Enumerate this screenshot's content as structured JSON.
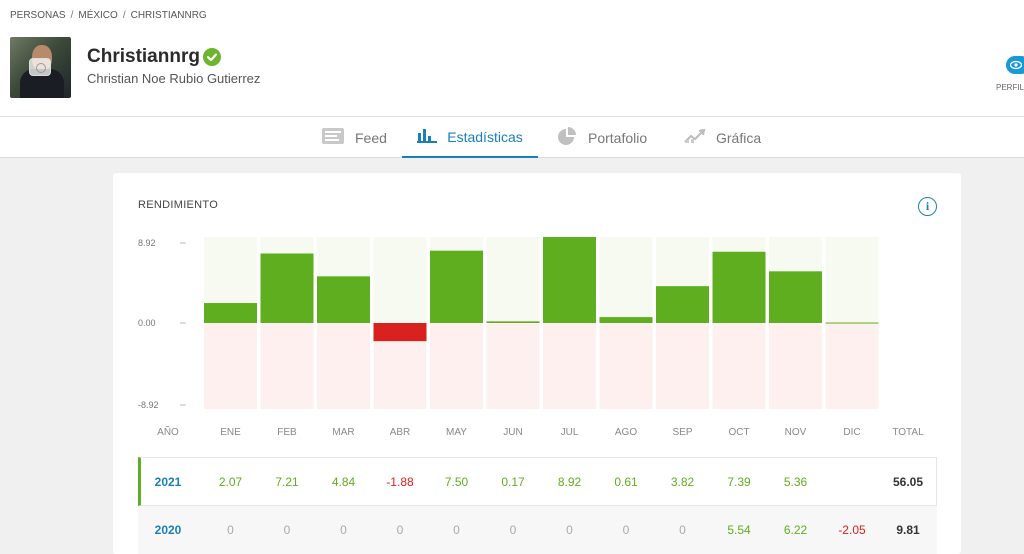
{
  "breadcrumb": [
    "PERSONAS",
    "MÉXICO",
    "CHRISTIANNRG"
  ],
  "profile": {
    "username": "Christiannrg",
    "full_name": "Christian Noe Rubio Gutierrez",
    "profile_label": "PERFIL"
  },
  "tabs": [
    {
      "label": "Feed",
      "icon": "feed-icon",
      "active": false
    },
    {
      "label": "Estadísticas",
      "icon": "bar-chart-icon",
      "active": true
    },
    {
      "label": "Portafolio",
      "icon": "pie-chart-icon",
      "active": false
    },
    {
      "label": "Gráfica",
      "icon": "line-chart-icon",
      "active": false
    }
  ],
  "card": {
    "title": "RENDIMIENTO",
    "info": "i"
  },
  "colors": {
    "positive": "#5fae1f",
    "negative": "#d9211f",
    "accent": "#1a7fb5"
  },
  "chart_data": {
    "type": "bar",
    "categories": [
      "ENE",
      "FEB",
      "MAR",
      "ABR",
      "MAY",
      "JUN",
      "JUL",
      "AGO",
      "SEP",
      "OCT",
      "NOV",
      "DIC"
    ],
    "values": [
      2.07,
      7.21,
      4.84,
      -1.88,
      7.5,
      0.17,
      8.92,
      0.61,
      3.82,
      7.39,
      5.36,
      0.05
    ],
    "ylim": [
      -8.92,
      8.92
    ],
    "yticks": [
      "8.92",
      "0.00",
      "-8.92"
    ]
  },
  "table": {
    "headers": {
      "year": "AÑO",
      "total": "TOTAL"
    },
    "months": [
      "ENE",
      "FEB",
      "MAR",
      "ABR",
      "MAY",
      "JUN",
      "JUL",
      "AGO",
      "SEP",
      "OCT",
      "NOV",
      "DIC"
    ],
    "rows": [
      {
        "year": "2021",
        "values": [
          "2.07",
          "7.21",
          "4.84",
          "-1.88",
          "7.50",
          "0.17",
          "8.92",
          "0.61",
          "3.82",
          "7.39",
          "5.36",
          ""
        ],
        "total": "56.05"
      },
      {
        "year": "2020",
        "values": [
          "0",
          "0",
          "0",
          "0",
          "0",
          "0",
          "0",
          "0",
          "0",
          "5.54",
          "6.22",
          "-2.05"
        ],
        "total": "9.81"
      }
    ]
  }
}
